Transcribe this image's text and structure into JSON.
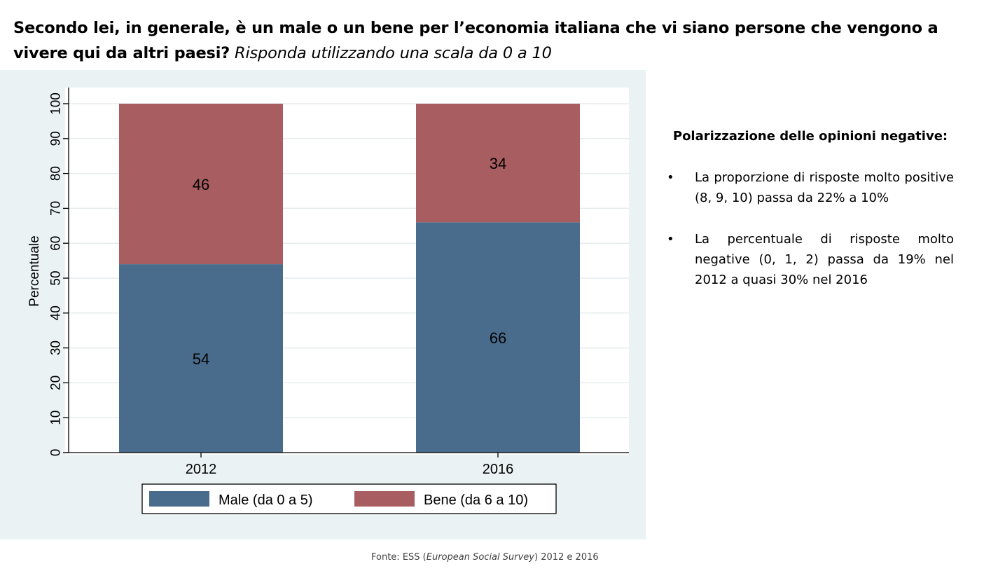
{
  "title": {
    "bold": "Secondo lei, in generale, è un male o un bene per l’economia italiana che vi siano persone che vengono a vivere qui da altri paesi?",
    "italic": "Risponda utilizzando una scala da 0 a 10"
  },
  "chart_data": {
    "type": "bar",
    "stacked": true,
    "categories": [
      "2012",
      "2016"
    ],
    "series": [
      {
        "name": "Male (da 0 a 5)",
        "values": [
          54,
          66
        ],
        "labels": [
          "54",
          "66"
        ],
        "color": "#4a6c8c"
      },
      {
        "name": "Bene (da 6 a 10)",
        "values": [
          46,
          34
        ],
        "labels": [
          "46",
          "34"
        ],
        "color": "#a85e60"
      }
    ],
    "ylabel": "Percentuale",
    "xlabel": "",
    "ylim": [
      0,
      100
    ],
    "yticks": [
      0,
      10,
      20,
      30,
      40,
      50,
      60,
      70,
      80,
      90,
      100
    ],
    "grid": true,
    "legend_position": "bottom"
  },
  "notes": {
    "heading": "Polarizzazione delle opinioni negative:",
    "bullet_symbol": "•",
    "bullets": [
      "La proporzione di risposte molto positive (8, 9, 10) passa da 22% a 10%",
      "La percentuale di risposte molto negative (0, 1, 2) passa da 19% nel 2012 a quasi 30% nel 2016"
    ]
  },
  "source": {
    "prefix": "Fonte: ESS (",
    "italic": "European Social Survey",
    "suffix": ") 2012 e 2016"
  }
}
